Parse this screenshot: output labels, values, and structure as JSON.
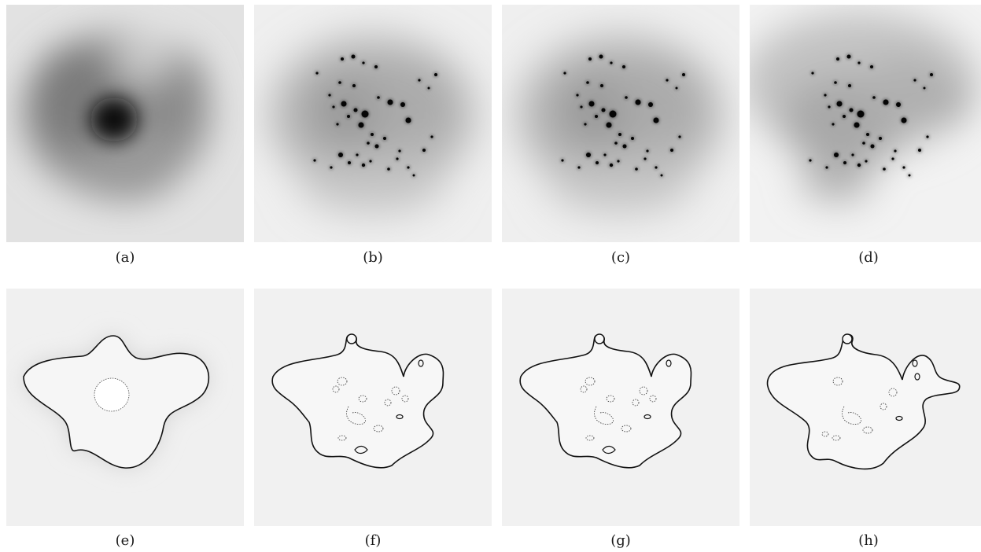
{
  "figure": {
    "panels": [
      {
        "caption": "(a)",
        "kind": "density-smooth"
      },
      {
        "caption": "(b)",
        "kind": "density-points"
      },
      {
        "caption": "(c)",
        "kind": "density-points"
      },
      {
        "caption": "(d)",
        "kind": "density-points-light"
      },
      {
        "caption": "(e)",
        "kind": "boundary-simple"
      },
      {
        "caption": "(f)",
        "kind": "boundary-detailed"
      },
      {
        "caption": "(g)",
        "kind": "boundary-detailed"
      },
      {
        "caption": "(h)",
        "kind": "boundary-detailed-variant"
      }
    ]
  }
}
